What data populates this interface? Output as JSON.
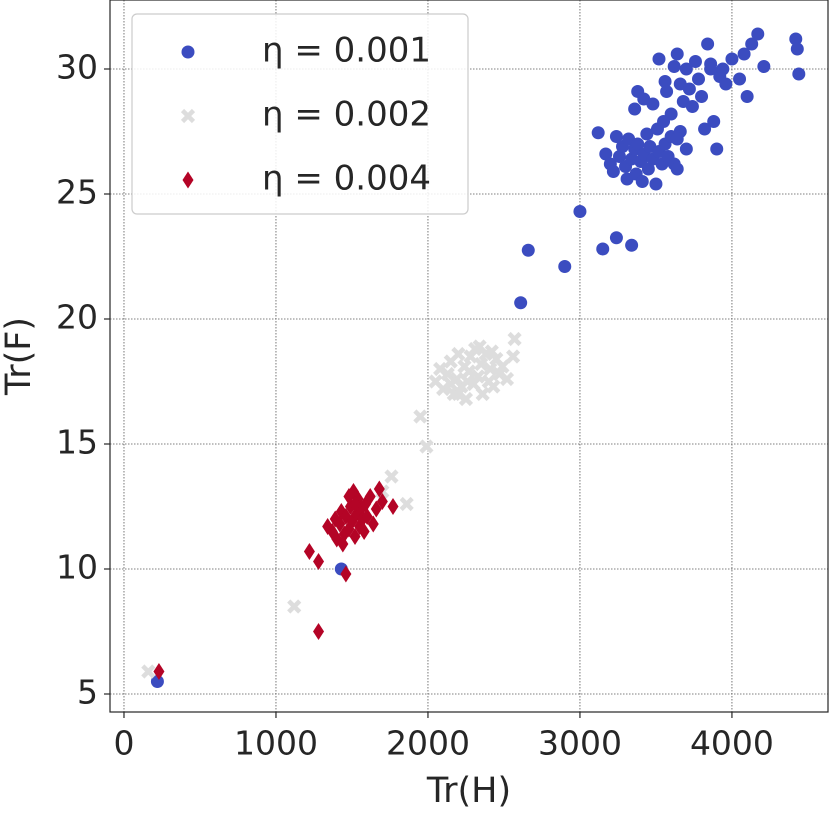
{
  "chart_data": {
    "type": "scatter",
    "xlabel": "Tr(H)",
    "ylabel": "Tr(F)",
    "xlim": [
      -92,
      4632
    ],
    "ylim": [
      4.28,
      32.76
    ],
    "xticks": [
      0,
      1000,
      2000,
      3000,
      4000
    ],
    "yticks": [
      5,
      10,
      15,
      20,
      25,
      30
    ],
    "grid": true,
    "legend": "upper left",
    "series": [
      {
        "name": "η = 0.001",
        "color": "#3b4cc0",
        "marker": "circle",
        "x": [
          220,
          1430,
          2610,
          2660,
          2900,
          3000,
          3150,
          3240,
          3340,
          3120,
          3170,
          3200,
          3220,
          3240,
          3260,
          3280,
          3300,
          3310,
          3320,
          3340,
          3360,
          3370,
          3380,
          3400,
          3410,
          3420,
          3440,
          3450,
          3460,
          3480,
          3500,
          3510,
          3520,
          3540,
          3560,
          3580,
          3600,
          3620,
          3640,
          3660,
          3700,
          3360,
          3380,
          3420,
          3480,
          3520,
          3560,
          3570,
          3600,
          3620,
          3640,
          3660,
          3680,
          3700,
          3720,
          3740,
          3760,
          3780,
          3800,
          3820,
          3840,
          3860,
          3880,
          3900,
          3920,
          3940,
          3960,
          4000,
          4050,
          4080,
          4100,
          4130,
          4170,
          4210,
          4420,
          4430,
          4440,
          3860,
          3550,
          3640
        ],
        "values": [
          5.5,
          10.0,
          20.65,
          22.75,
          22.1,
          24.3,
          22.8,
          23.25,
          22.95,
          27.45,
          26.6,
          26.2,
          25.9,
          27.3,
          26.5,
          26.9,
          26.1,
          25.6,
          27.2,
          26.4,
          26.8,
          25.8,
          27.0,
          26.3,
          25.5,
          26.6,
          27.4,
          26.0,
          26.9,
          26.4,
          25.4,
          27.6,
          26.7,
          26.2,
          27.0,
          26.5,
          27.3,
          26.2,
          26.0,
          27.5,
          26.8,
          28.4,
          29.1,
          28.8,
          28.6,
          30.4,
          29.5,
          29.1,
          28.2,
          30.1,
          30.6,
          29.4,
          28.7,
          30.0,
          29.2,
          28.5,
          30.3,
          29.6,
          28.9,
          27.6,
          31.0,
          30.2,
          27.9,
          26.8,
          29.7,
          30.0,
          29.4,
          30.4,
          29.6,
          30.6,
          28.9,
          31.0,
          31.4,
          30.1,
          31.2,
          30.8,
          29.8,
          30.0,
          27.9,
          27.2
        ]
      },
      {
        "name": "η = 0.002",
        "color": "#dddddd",
        "marker": "x",
        "x": [
          160,
          1120,
          1700,
          1760,
          1860,
          1950,
          1990,
          2560,
          2570,
          2050,
          2080,
          2100,
          2130,
          2150,
          2170,
          2190,
          2200,
          2220,
          2240,
          2250,
          2270,
          2280,
          2300,
          2310,
          2330,
          2350,
          2360,
          2380,
          2400,
          2410,
          2430,
          2450,
          2470,
          2490,
          2520,
          2200,
          2260,
          2340,
          2150,
          2420
        ],
        "values": [
          5.9,
          8.5,
          13.1,
          13.7,
          12.6,
          16.1,
          14.9,
          18.5,
          19.2,
          17.5,
          18.0,
          17.2,
          17.8,
          18.3,
          17.0,
          17.6,
          18.6,
          17.3,
          18.1,
          16.8,
          17.9,
          18.5,
          17.4,
          18.8,
          17.7,
          18.2,
          17.0,
          18.6,
          17.5,
          18.0,
          17.3,
          18.4,
          17.8,
          18.1,
          17.6,
          17.0,
          17.5,
          18.9,
          17.4,
          18.7
        ]
      },
      {
        "name": "η = 0.004",
        "color": "#b40426",
        "marker": "diamond",
        "x": [
          230,
          1220,
          1280,
          1280,
          1460,
          1770,
          1340,
          1370,
          1390,
          1400,
          1420,
          1430,
          1450,
          1460,
          1480,
          1490,
          1500,
          1510,
          1520,
          1530,
          1540,
          1550,
          1560,
          1570,
          1580,
          1590,
          1600,
          1620,
          1640,
          1660,
          1680,
          1700,
          1480,
          1520,
          1440
        ],
        "values": [
          5.9,
          10.7,
          10.3,
          7.5,
          9.8,
          12.5,
          11.7,
          11.5,
          12.0,
          11.2,
          11.8,
          12.3,
          11.4,
          12.1,
          11.6,
          12.5,
          11.9,
          13.1,
          11.3,
          12.2,
          12.8,
          11.7,
          12.4,
          12.0,
          11.5,
          12.6,
          12.1,
          12.9,
          11.8,
          12.4,
          13.2,
          12.7,
          12.9,
          12.6,
          11.0
        ]
      }
    ]
  }
}
